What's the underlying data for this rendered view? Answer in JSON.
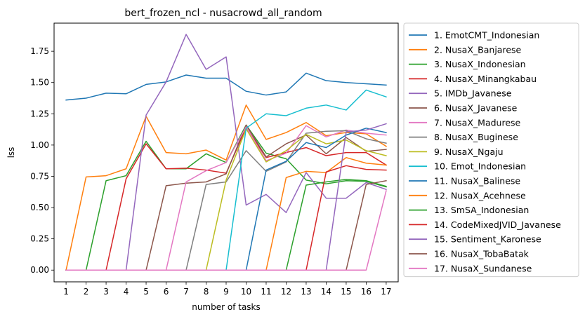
{
  "chart_data": {
    "type": "line",
    "title": "bert_frozen_ncl - nusacrowd_all_random",
    "xlabel": "number of tasks",
    "ylabel": "lss",
    "x": [
      1,
      2,
      3,
      4,
      5,
      6,
      7,
      8,
      9,
      10,
      11,
      12,
      13,
      14,
      15,
      16,
      17
    ],
    "xticks": [
      "1",
      "2",
      "3",
      "4",
      "5",
      "6",
      "7",
      "8",
      "9",
      "10",
      "11",
      "12",
      "13",
      "14",
      "15",
      "16",
      "17"
    ],
    "xlim": [
      0.4,
      17.6
    ],
    "ylim": [
      -0.094,
      1.975
    ],
    "yticks": [
      0.0,
      0.25,
      0.5,
      0.75,
      1.0,
      1.25,
      1.5,
      1.75
    ],
    "ytick_labels": [
      "0.00",
      "0.25",
      "0.50",
      "0.75",
      "1.00",
      "1.25",
      "1.50",
      "1.75"
    ],
    "grid": false,
    "legend_position": "outside-right",
    "series": [
      {
        "name": "1. EmotCMT_Indonesian",
        "color": "#1f77b4",
        "values": [
          1.36,
          1.375,
          1.415,
          1.41,
          1.485,
          1.505,
          1.56,
          1.535,
          1.535,
          1.43,
          1.4,
          1.425,
          1.575,
          1.515,
          1.5,
          1.49,
          1.48
        ]
      },
      {
        "name": "2. NusaX_Banjarese",
        "color": "#ff7f0e",
        "values": [
          0.0,
          0.745,
          0.755,
          0.81,
          1.23,
          0.94,
          0.93,
          0.96,
          0.88,
          1.32,
          1.045,
          1.1,
          1.18,
          1.075,
          1.1,
          1.09,
          0.99
        ]
      },
      {
        "name": "3. NusaX_Indonesian",
        "color": "#2ca02c",
        "values": [
          0.0,
          0.0,
          0.715,
          0.755,
          1.03,
          0.81,
          0.81,
          0.93,
          0.86,
          1.16,
          0.935,
          0.89,
          0.72,
          0.69,
          0.715,
          0.71,
          0.665
        ]
      },
      {
        "name": "4. NusaX_Minangkabau",
        "color": "#d62728",
        "values": [
          0.0,
          0.0,
          0.0,
          0.73,
          1.01,
          0.81,
          0.815,
          0.8,
          0.775,
          1.14,
          0.9,
          0.94,
          0.98,
          0.915,
          0.94,
          0.94,
          0.84
        ]
      },
      {
        "name": "5. IMDb_Javanese",
        "color": "#9467bd",
        "values": [
          0.0,
          0.0,
          0.0,
          0.0,
          1.24,
          1.505,
          1.885,
          1.605,
          1.705,
          0.52,
          0.605,
          0.46,
          0.78,
          0.575,
          0.575,
          0.7,
          0.645
        ]
      },
      {
        "name": "6. NusaX_Javanese",
        "color": "#8c564b",
        "values": [
          0.0,
          0.0,
          0.0,
          0.0,
          0.0,
          0.675,
          0.695,
          0.705,
          0.77,
          1.16,
          0.905,
          1.01,
          1.08,
          0.93,
          1.06,
          0.95,
          0.965
        ]
      },
      {
        "name": "7. NusaX_Madurese",
        "color": "#e377c2",
        "values": [
          0.0,
          0.0,
          0.0,
          0.0,
          0.0,
          0.0,
          0.705,
          0.795,
          0.86,
          1.145,
          0.875,
          0.935,
          1.155,
          1.065,
          1.12,
          1.095,
          1.08
        ]
      },
      {
        "name": "8. NusaX_Buginese",
        "color": "#7f7f7f",
        "values": [
          0.0,
          0.0,
          0.0,
          0.0,
          0.0,
          0.0,
          0.0,
          0.685,
          0.705,
          0.955,
          0.79,
          0.865,
          1.095,
          1.11,
          1.115,
          1.05,
          1.015
        ]
      },
      {
        "name": "9. NusaX_Ngaju",
        "color": "#bcbd22",
        "values": [
          0.0,
          0.0,
          0.0,
          0.0,
          0.0,
          0.0,
          0.0,
          0.0,
          0.72,
          1.13,
          0.865,
          0.955,
          1.085,
          1.01,
          1.04,
          0.955,
          0.915
        ]
      },
      {
        "name": "10. Emot_Indonesian",
        "color": "#17becf",
        "values": [
          0.0,
          0.0,
          0.0,
          0.0,
          0.0,
          0.0,
          0.0,
          0.0,
          0.0,
          1.135,
          1.25,
          1.235,
          1.295,
          1.32,
          1.28,
          1.44,
          1.385
        ]
      },
      {
        "name": "11. NusaX_Balinese",
        "color": "#1f77b4",
        "values": [
          0.0,
          0.0,
          0.0,
          0.0,
          0.0,
          0.0,
          0.0,
          0.0,
          0.0,
          0.0,
          0.8,
          0.87,
          1.02,
          0.98,
          1.08,
          1.135,
          1.1
        ]
      },
      {
        "name": "12. NusaX_Acehnese",
        "color": "#ff7f0e",
        "values": [
          0.0,
          0.0,
          0.0,
          0.0,
          0.0,
          0.0,
          0.0,
          0.0,
          0.0,
          0.0,
          0.0,
          0.74,
          0.79,
          0.78,
          0.9,
          0.855,
          0.84
        ]
      },
      {
        "name": "13. SmSA_Indonesian",
        "color": "#2ca02c",
        "values": [
          0.0,
          0.0,
          0.0,
          0.0,
          0.0,
          0.0,
          0.0,
          0.0,
          0.0,
          0.0,
          0.0,
          0.0,
          0.68,
          0.705,
          0.725,
          0.715,
          0.67
        ]
      },
      {
        "name": "14. CodeMixedJVID_Javanese",
        "color": "#d62728",
        "values": [
          0.0,
          0.0,
          0.0,
          0.0,
          0.0,
          0.0,
          0.0,
          0.0,
          0.0,
          0.0,
          0.0,
          0.0,
          0.0,
          0.785,
          0.835,
          0.805,
          0.8
        ]
      },
      {
        "name": "15. Sentiment_Karonese",
        "color": "#9467bd",
        "values": [
          0.0,
          0.0,
          0.0,
          0.0,
          0.0,
          0.0,
          0.0,
          0.0,
          0.0,
          0.0,
          0.0,
          0.0,
          0.0,
          0.0,
          1.105,
          1.12,
          1.17
        ]
      },
      {
        "name": "16. NusaX_TobaBatak",
        "color": "#8c564b",
        "values": [
          0.0,
          0.0,
          0.0,
          0.0,
          0.0,
          0.0,
          0.0,
          0.0,
          0.0,
          0.0,
          0.0,
          0.0,
          0.0,
          0.0,
          0.0,
          0.685,
          0.715
        ]
      },
      {
        "name": "17. NusaX_Sundanese",
        "color": "#e377c2",
        "values": [
          0.0,
          0.0,
          0.0,
          0.0,
          0.0,
          0.0,
          0.0,
          0.0,
          0.0,
          0.0,
          0.0,
          0.0,
          0.0,
          0.0,
          0.0,
          0.0,
          0.635
        ]
      }
    ]
  }
}
